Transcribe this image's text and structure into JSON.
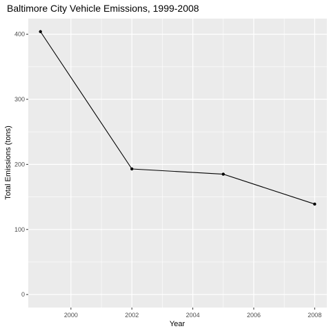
{
  "chart_data": {
    "type": "line",
    "title": "Baltimore City Vehicle Emissions, 1999-2008",
    "xlabel": "Year",
    "ylabel": "Total Emissions (tons)",
    "x": [
      1999,
      2002,
      2005,
      2008
    ],
    "series": [
      {
        "values": [
          404,
          193,
          185,
          139
        ]
      }
    ],
    "xlim": [
      1998.6,
      2008.4
    ],
    "ylim": [
      -20,
      424
    ],
    "x_ticks": [
      2000,
      2002,
      2004,
      2006,
      2008
    ],
    "y_ticks": [
      0,
      100,
      200,
      300,
      400
    ],
    "grid": true,
    "panel_color": "#ebebeb",
    "line_color": "#000000",
    "point_color": "#000000"
  }
}
